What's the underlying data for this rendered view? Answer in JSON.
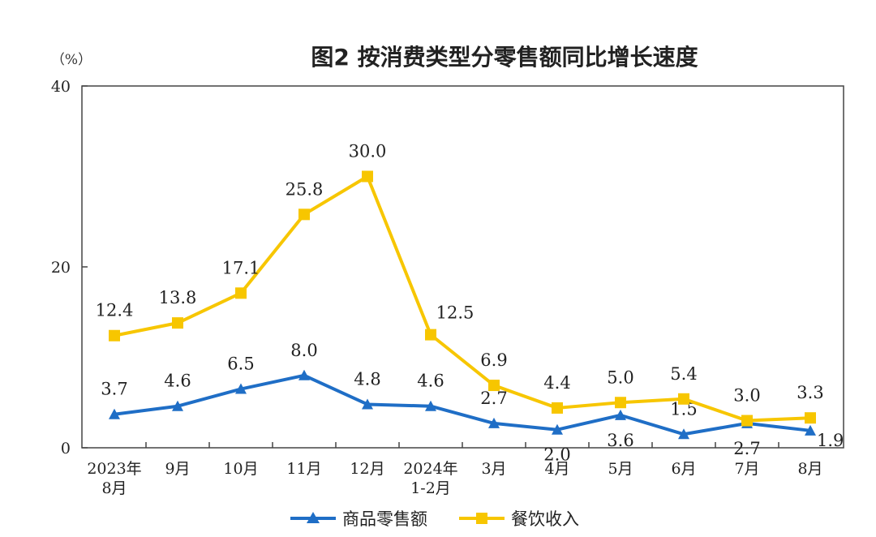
{
  "chart_data": {
    "type": "line",
    "title": "图2  按消费类型分零售额同比增长速度",
    "ylabel": "（%）",
    "ylim": [
      0,
      40
    ],
    "yticks": [
      "0",
      "20",
      "40"
    ],
    "grid": false,
    "legend_position": "bottom",
    "categories": [
      [
        "2023年",
        "8月"
      ],
      [
        "9月"
      ],
      [
        "10月"
      ],
      [
        "11月"
      ],
      [
        "12月"
      ],
      [
        "2024年",
        "1-2月"
      ],
      [
        "3月"
      ],
      [
        "4月"
      ],
      [
        "5月"
      ],
      [
        "6月"
      ],
      [
        "7月"
      ],
      [
        "8月"
      ]
    ],
    "series": [
      {
        "name": "商品零售额",
        "color": "#1f6ec6",
        "marker": "triangle",
        "values": [
          3.7,
          4.6,
          6.5,
          8.0,
          4.8,
          4.6,
          2.7,
          2.0,
          3.6,
          1.5,
          2.7,
          1.9
        ],
        "labels": [
          "3.7",
          "4.6",
          "6.5",
          "8.0",
          "4.8",
          "4.6",
          "2.7",
          "2.0",
          "3.6",
          "1.5",
          "2.7",
          "1.9"
        ]
      },
      {
        "name": "餐饮收入",
        "color": "#f7c600",
        "marker": "square",
        "values": [
          12.4,
          13.8,
          17.1,
          25.8,
          30.0,
          12.5,
          6.9,
          4.4,
          5.0,
          5.4,
          3.0,
          3.3
        ],
        "labels": [
          "12.4",
          "13.8",
          "17.1",
          "25.8",
          "30.0",
          "12.5",
          "6.9",
          "4.4",
          "5.0",
          "5.4",
          "3.0",
          "3.3"
        ]
      }
    ]
  }
}
